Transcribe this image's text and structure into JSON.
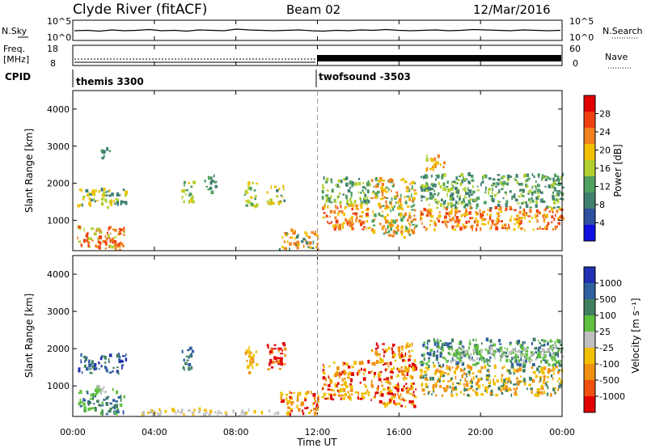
{
  "header": {
    "station": "Clyde River (fitACF)",
    "beam": "Beam 02",
    "date": "12/Mar/2016"
  },
  "noise_panel": {
    "left_label": "N.Sky",
    "right_label": "N.Search",
    "left_ticks": [
      "10^5",
      "10^0"
    ],
    "right_ticks": [
      "10^5",
      "10^0"
    ],
    "trace": [
      3.2,
      3.3,
      3.1,
      3.4,
      3.2,
      3.3,
      3.5,
      3.2,
      3.3,
      3.1,
      3.4,
      3.3,
      3.2,
      3.6,
      3.4,
      3.3,
      3.2,
      3.3,
      3.4,
      3.2,
      3.1,
      3.3,
      3.2,
      3.4,
      3.3,
      3.5,
      3.3,
      3.2,
      3.3,
      3.4,
      3.2,
      3.3,
      3.5,
      3.4,
      3.3,
      3.2,
      3.4,
      3.3,
      3.2,
      3.3
    ]
  },
  "freq_panel": {
    "left_label_1": "Freq.",
    "left_label_2": "[MHz]",
    "right_label": "Nave",
    "left_ticks": [
      "18",
      "8"
    ],
    "right_ticks": [
      "60",
      "0"
    ]
  },
  "cpid_panel": {
    "label": "CPID",
    "programs": [
      {
        "name": "themis 3300",
        "start_hour": 0
      },
      {
        "name": "twofsound -3503",
        "start_hour": 12
      }
    ]
  },
  "power_colorbar": {
    "label": "Power [dB]",
    "ticks": [
      "28",
      "24",
      "20",
      "16",
      "12",
      "8",
      "4"
    ],
    "colors": [
      "#e00000",
      "#f04010",
      "#f08020",
      "#f0c000",
      "#b0d030",
      "#50a060",
      "#408070",
      "#3050a0",
      "#1010e0"
    ]
  },
  "velocity_colorbar": {
    "label": "Velocity [m s⁻¹]",
    "ticks": [
      "1000",
      "500",
      "100",
      "25",
      "-25",
      "-100",
      "-500",
      "-1000"
    ],
    "colors": [
      "#2030b0",
      "#3060a0",
      "#408060",
      "#60c040",
      "#c0c0c0",
      "#f0c000",
      "#f09010",
      "#f05010",
      "#e00000"
    ]
  },
  "chart_data": {
    "type": "heatmap",
    "x_axis": {
      "label": "Time UT",
      "ticks": [
        "00:00",
        "04:00",
        "08:00",
        "12:00",
        "16:00",
        "20:00",
        "00:00"
      ],
      "range_hours": [
        0,
        24
      ]
    },
    "y_axis": {
      "label": "Slant Range [km]",
      "ticks": [
        "1000",
        "2000",
        "3000",
        "4000"
      ],
      "range_km": [
        180,
        4500
      ]
    },
    "marker_hour": 12,
    "power_clusters": [
      {
        "t0": 0.2,
        "t1": 2.6,
        "r0": 1300,
        "r1": 1800,
        "v": [
          8,
          16,
          22
        ]
      },
      {
        "t0": 0.2,
        "t1": 2.5,
        "r0": 200,
        "r1": 800,
        "v": [
          16,
          24,
          28
        ]
      },
      {
        "t0": 1.2,
        "t1": 2.4,
        "r0": 180,
        "r1": 500,
        "v": [
          24,
          28,
          28
        ]
      },
      {
        "t0": 1.3,
        "t1": 1.8,
        "r0": 2600,
        "r1": 2900,
        "v": [
          8,
          12
        ]
      },
      {
        "t0": 5.3,
        "t1": 5.9,
        "r0": 1400,
        "r1": 2000,
        "v": [
          12,
          18,
          22
        ]
      },
      {
        "t0": 6.4,
        "t1": 7.0,
        "r0": 1700,
        "r1": 2200,
        "v": [
          8,
          12
        ]
      },
      {
        "t0": 8.4,
        "t1": 9.0,
        "r0": 1300,
        "r1": 2000,
        "v": [
          12,
          18,
          22
        ]
      },
      {
        "t0": 9.5,
        "t1": 10.4,
        "r0": 1400,
        "r1": 1900,
        "v": [
          10,
          16,
          22
        ]
      },
      {
        "t0": 10.1,
        "t1": 12.0,
        "r0": 180,
        "r1": 700,
        "v": [
          8,
          20,
          26
        ]
      },
      {
        "t0": 12.2,
        "t1": 14.5,
        "r0": 700,
        "r1": 1400,
        "v": [
          20,
          24,
          28
        ]
      },
      {
        "t0": 12.2,
        "t1": 14.5,
        "r0": 1400,
        "r1": 2100,
        "v": [
          8,
          12,
          16
        ]
      },
      {
        "t0": 14.6,
        "t1": 16.8,
        "r0": 500,
        "r1": 2100,
        "v": [
          12,
          20,
          26
        ]
      },
      {
        "t0": 17.0,
        "t1": 24.0,
        "r0": 700,
        "r1": 1300,
        "v": [
          20,
          24,
          28
        ]
      },
      {
        "t0": 17.0,
        "t1": 24.0,
        "r0": 1300,
        "r1": 2200,
        "v": [
          8,
          12,
          16
        ]
      },
      {
        "t0": 17.3,
        "t1": 18.2,
        "r0": 2300,
        "r1": 2700,
        "v": [
          16,
          22,
          26
        ]
      }
    ],
    "velocity_clusters": [
      {
        "t0": 0.2,
        "t1": 2.6,
        "r0": 1300,
        "r1": 1800,
        "v": [
          100,
          500,
          1000
        ]
      },
      {
        "t0": 0.2,
        "t1": 2.5,
        "r0": 200,
        "r1": 800,
        "v": [
          100,
          25,
          500
        ]
      },
      {
        "t0": 1.0,
        "t1": 2.0,
        "r0": 700,
        "r1": 1000,
        "v": [
          25,
          -25
        ]
      },
      {
        "t0": 5.3,
        "t1": 5.9,
        "r0": 1400,
        "r1": 2000,
        "v": [
          100,
          500
        ]
      },
      {
        "t0": 8.4,
        "t1": 9.0,
        "r0": 1300,
        "r1": 2000,
        "v": [
          -100,
          -500
        ]
      },
      {
        "t0": 9.5,
        "t1": 10.4,
        "r0": 1400,
        "r1": 2100,
        "v": [
          -500,
          -1000
        ]
      },
      {
        "t0": 10.1,
        "t1": 12.0,
        "r0": 180,
        "r1": 800,
        "v": [
          -500,
          -1000,
          -100
        ]
      },
      {
        "t0": 3.0,
        "t1": 10.0,
        "r0": 180,
        "r1": 320,
        "v": [
          -100,
          -25
        ]
      },
      {
        "t0": 12.2,
        "t1": 14.5,
        "r0": 600,
        "r1": 1600,
        "v": [
          -500,
          -1000,
          -100
        ]
      },
      {
        "t0": 14.6,
        "t1": 16.8,
        "r0": 400,
        "r1": 2100,
        "v": [
          -500,
          -100,
          -1000
        ]
      },
      {
        "t0": 17.0,
        "t1": 24.0,
        "r0": 700,
        "r1": 1500,
        "v": [
          -100,
          -500,
          100
        ]
      },
      {
        "t0": 17.0,
        "t1": 24.0,
        "r0": 1500,
        "r1": 2200,
        "v": [
          25,
          100,
          500
        ]
      },
      {
        "t0": 18.5,
        "t1": 24.0,
        "r0": 1600,
        "r1": 2000,
        "v": [
          25,
          -25
        ]
      }
    ]
  }
}
